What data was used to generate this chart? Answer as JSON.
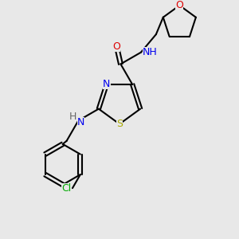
{
  "bg_color": "#e8e8e8",
  "bond_color": "#000000",
  "bond_width": 1.5,
  "atom_colors": {
    "C": "#000000",
    "N": "#0000ee",
    "O": "#dd0000",
    "S": "#aaaa00",
    "Cl": "#00aa00",
    "H": "#666666"
  },
  "font_size": 9,
  "font_size_small": 8
}
